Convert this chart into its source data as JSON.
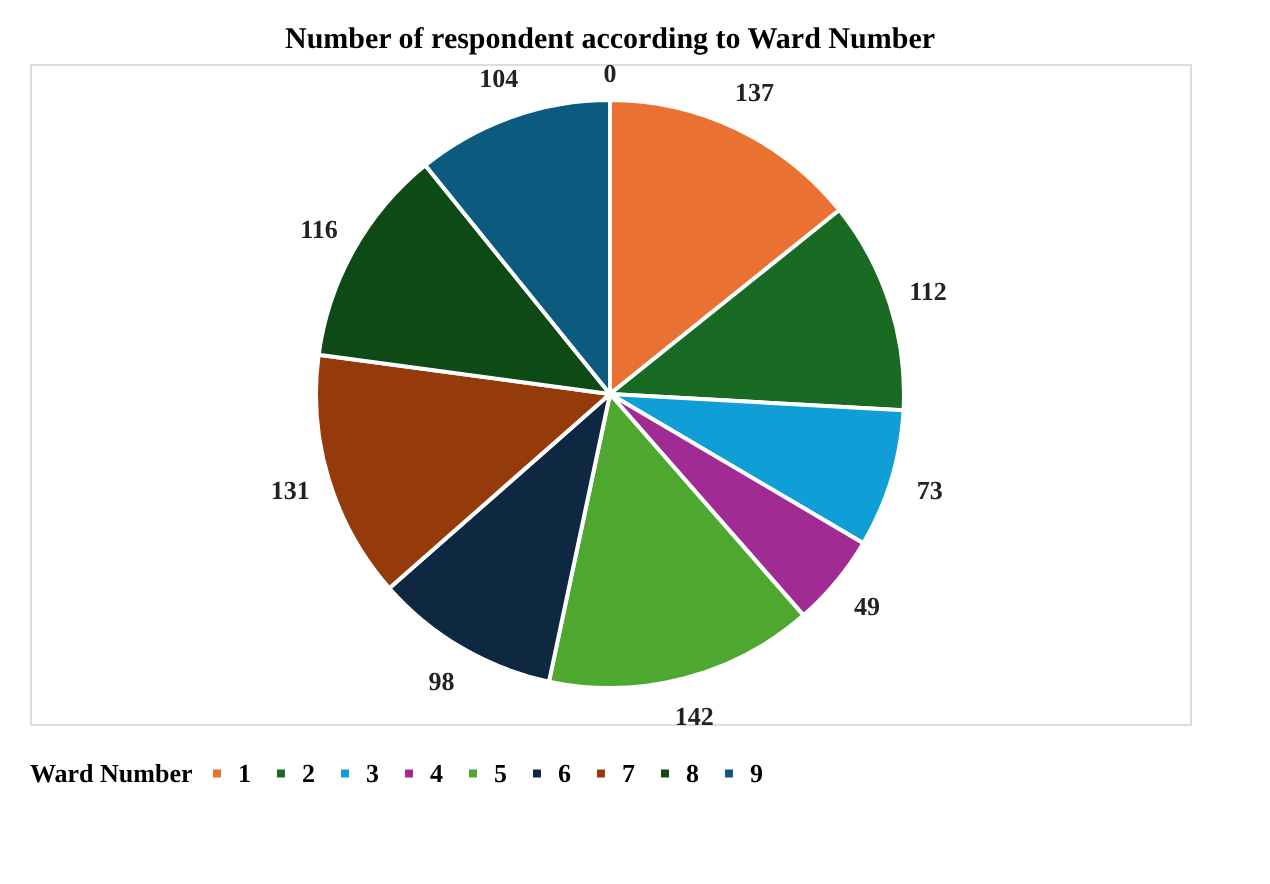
{
  "chart_data": {
    "type": "pie",
    "title": "Number of respondent according to Ward Number",
    "legend_title": "Ward Number",
    "categories": [
      "1",
      "2",
      "3",
      "4",
      "5",
      "6",
      "7",
      "8",
      "9"
    ],
    "values": [
      137,
      112,
      73,
      49,
      142,
      98,
      131,
      116,
      104
    ],
    "colors": [
      "#e97132",
      "#196b24",
      "#0f9ed5",
      "#a02b93",
      "#4ea72e",
      "#0e2841",
      "#953a0b",
      "#0d4a16",
      "#0c5a7d"
    ],
    "annotations": [
      "0"
    ],
    "data_labels": true,
    "legend": "bottom"
  }
}
